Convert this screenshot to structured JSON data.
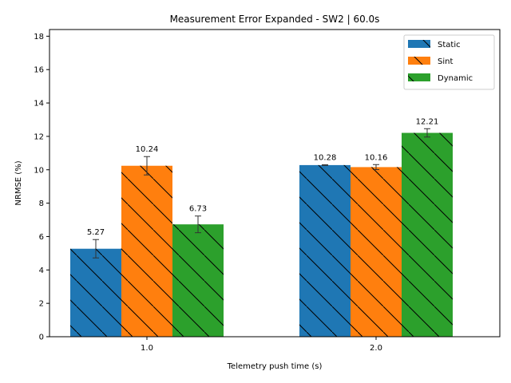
{
  "chart_data": {
    "type": "bar",
    "title": "Measurement Error Expanded - SW2 | 60.0s",
    "xlabel": "Telemetry push time (s)",
    "ylabel": "NRMSE (%)",
    "categories": [
      "1.0",
      "2.0"
    ],
    "ylim": [
      0,
      18.4
    ],
    "yticks": [
      "0",
      "2",
      "4",
      "6",
      "8",
      "10",
      "12",
      "14",
      "16",
      "18"
    ],
    "grid": false,
    "legend_placement": "top-right",
    "hatch": "diagonal",
    "series": [
      {
        "name": "Static",
        "color": "#1f77b4",
        "values": [
          5.27,
          10.28
        ],
        "errors": [
          0.55,
          0.02
        ],
        "labels": [
          "5.27",
          "10.28"
        ]
      },
      {
        "name": "Sint",
        "color": "#ff7f0e",
        "values": [
          10.24,
          10.16
        ],
        "errors": [
          0.55,
          0.15
        ],
        "labels": [
          "10.24",
          "10.16"
        ]
      },
      {
        "name": "Dynamic",
        "color": "#2ca02c",
        "values": [
          6.73,
          12.21
        ],
        "errors": [
          0.5,
          0.25
        ],
        "labels": [
          "6.73",
          "12.21"
        ]
      }
    ]
  }
}
